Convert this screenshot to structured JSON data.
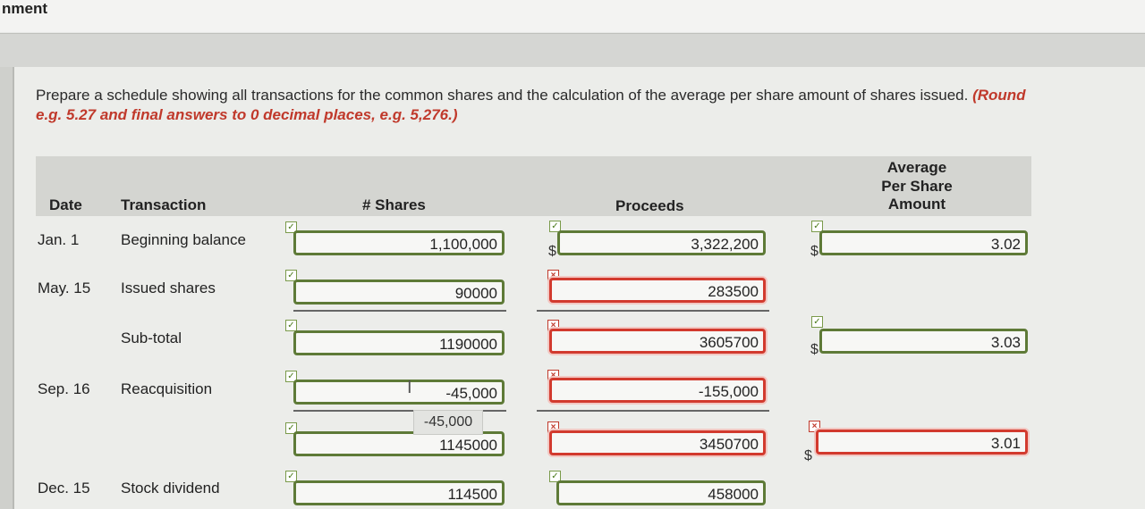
{
  "page": {
    "title_fragment": "nment"
  },
  "instructions": {
    "text": "Prepare a schedule showing all transactions for the common shares and the calculation of the average per share amount of shares issued.",
    "emphasis_line1": "(Round",
    "emphasis_line2": "e.g. 5.27 and final answers to 0 decimal places, e.g. 5,276.)"
  },
  "table": {
    "headers": {
      "date": "Date",
      "transaction": "Transaction",
      "shares": "# Shares",
      "proceeds": "Proceeds",
      "avg_l1": "Average",
      "avg_l2": "Per Share",
      "avg_l3": "Amount"
    },
    "currency": "$",
    "rows": [
      {
        "date": "Jan. 1",
        "transaction": "Beginning balance",
        "shares": "1,100,000",
        "proceeds": "3,322,200",
        "avg": "3.02"
      },
      {
        "date": "May. 15",
        "transaction": "Issued shares",
        "shares": "90000",
        "proceeds": "283500"
      },
      {
        "date": "",
        "transaction": "Sub-total",
        "shares": "1190000",
        "proceeds": "3605700",
        "avg": "3.03"
      },
      {
        "date": "Sep. 16",
        "transaction": "Reacquisition",
        "shares": "-45,000",
        "proceeds": "-155,000"
      },
      {
        "date": "",
        "transaction": "",
        "shares": "1145000",
        "proceeds": "3450700",
        "avg": "3.01"
      },
      {
        "date": "Dec. 15",
        "transaction": "Stock dividend",
        "shares": "114500",
        "proceeds": "458000"
      }
    ]
  },
  "tooltip": {
    "text": "-45,000"
  },
  "status_colors": {
    "correct": "#5e7a37",
    "incorrect": "#d23a2e"
  },
  "icons": {
    "correct": "check-icon",
    "incorrect": "x-icon"
  }
}
